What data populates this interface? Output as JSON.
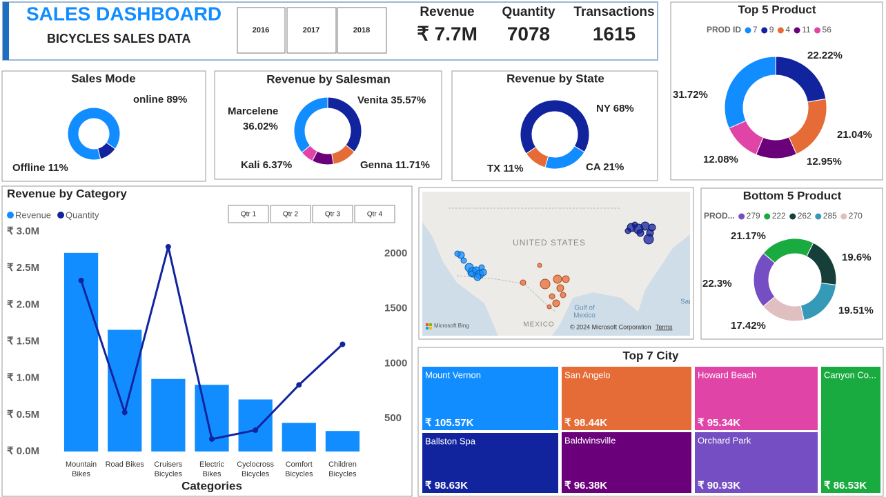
{
  "header": {
    "title": "SALES DASHBOARD",
    "subtitle": "BICYCLES SALES DATA",
    "years": [
      "2016",
      "2017",
      "2018"
    ]
  },
  "kpis": [
    {
      "label": "Revenue",
      "value": "₹ 7.7M"
    },
    {
      "label": "Quantity",
      "value": 7078
    },
    {
      "label": "Transactions",
      "value": 1615
    }
  ],
  "chart_data": [
    {
      "type": "donut",
      "title": "Sales Mode",
      "categories": [
        "online",
        "Offline"
      ],
      "values": [
        89,
        11
      ],
      "value_labels": [
        "89%",
        "11%"
      ],
      "colors": [
        "#118dff",
        "#12239e"
      ]
    },
    {
      "type": "donut",
      "title": "Revenue by Salesman",
      "categories": [
        "Venita",
        "Genna",
        null,
        "Kali",
        "Marcelene"
      ],
      "values": [
        35.57,
        11.71,
        10.33,
        6.37,
        36.02
      ],
      "value_labels": [
        "35.57%",
        "11.71%",
        null,
        "6.37%",
        "36.02%"
      ],
      "colors": [
        "#12239e",
        "#e66c37",
        "#6b007b",
        "#e044a7",
        "#118dff"
      ]
    },
    {
      "type": "donut",
      "title": "Revenue by State",
      "categories": [
        "NY",
        "CA",
        "TX"
      ],
      "values": [
        68,
        21,
        11
      ],
      "value_labels": [
        "68%",
        "21%",
        "11%"
      ],
      "colors": [
        "#12239e",
        "#118dff",
        "#e66c37"
      ]
    },
    {
      "type": "donut",
      "title": "Top 5 Product",
      "legend_title": "PROD ID",
      "categories": [
        "7",
        "9",
        "4",
        "11",
        "56"
      ],
      "values": [
        31.72,
        22.22,
        21.04,
        12.95,
        12.08
      ],
      "value_labels": [
        "31.72%",
        "22.22%",
        "21.04%",
        "12.95%",
        "12.08%"
      ],
      "colors": [
        "#118dff",
        "#12239e",
        "#e66c37",
        "#6b007b",
        "#e044a7"
      ]
    },
    {
      "type": "combo",
      "title": "Revenue by Category",
      "x_label": "Categories",
      "slicers": [
        "Qtr 1",
        "Qtr 2",
        "Qtr 3",
        "Qtr 4"
      ],
      "categories": [
        "Mountain Bikes",
        "Road Bikes",
        "Cruisers Bicycles",
        "Electric Bikes",
        "Cyclocross Bicycles",
        "Comfort Bicycles",
        "Children Bicycles"
      ],
      "series": [
        {
          "name": "Revenue",
          "kind": "bar",
          "color": "#118dff",
          "values": [
            2710000,
            1660000,
            990000,
            910000,
            710000,
            390000,
            280000
          ]
        },
        {
          "name": "Quantity",
          "kind": "line",
          "axis": "y2",
          "color": "#12239e",
          "values": [
            1756,
            556,
            2062,
            313,
            394,
            806,
            1175
          ]
        }
      ],
      "ylim": [
        0,
        3000000
      ],
      "yticks": [
        {
          "value": 0,
          "label": "₹ 0.0M"
        },
        {
          "value": 500000,
          "label": "₹ 0.5M"
        },
        {
          "value": 1000000,
          "label": "₹ 1.0M"
        },
        {
          "value": 1500000,
          "label": "₹ 1.5M"
        },
        {
          "value": 2000000,
          "label": "₹ 2.0M"
        },
        {
          "value": 2500000,
          "label": "₹ 2.5M"
        },
        {
          "value": 3000000,
          "label": "₹ 3.0M"
        }
      ],
      "y2lim": [
        200,
        2200
      ],
      "y2ticks": [
        500,
        1000,
        1500,
        2000
      ]
    },
    {
      "type": "donut",
      "title": "Bottom 5 Product",
      "legend_title": "PROD...",
      "categories": [
        "279",
        "222",
        "262",
        "285",
        "270"
      ],
      "values": [
        22.3,
        21.17,
        19.6,
        19.51,
        17.42
      ],
      "value_labels": [
        "22.3%",
        "21.17%",
        "19.6%",
        "19.51%",
        "17.42%"
      ],
      "colors": [
        "#744ec2",
        "#1aab40",
        "#163f3a",
        "#3599b8",
        "#dfbfbf"
      ]
    },
    {
      "type": "treemap",
      "title": "Top 7 City",
      "categories": [
        "Mount Vernon",
        "Ballston Spa",
        "San Angelo",
        "Baldwinsville",
        "Howard Beach",
        "Orchard Park",
        "Canyon Co..."
      ],
      "values": [
        105570,
        98630,
        98440,
        96380,
        95340,
        90930,
        86530
      ],
      "value_labels": [
        "₹ 105.57K",
        "₹ 98.63K",
        "₹ 98.44K",
        "₹ 96.38K",
        "₹ 95.34K",
        "₹ 90.93K",
        "₹ 86.53K"
      ],
      "colors": [
        "#118dff",
        "#12239e",
        "#e66c37",
        "#6b007b",
        "#e044a7",
        "#744ec2",
        "#1aab40"
      ]
    }
  ],
  "map": {
    "country": "UNITED STATES",
    "gulf": [
      "Gulf of",
      "Mexico"
    ],
    "mexico": "MEXICO",
    "edge": "Sar",
    "logo": "Microsoft Bing",
    "copyright": "© 2024 Microsoft Corporation",
    "terms": "Terms"
  }
}
